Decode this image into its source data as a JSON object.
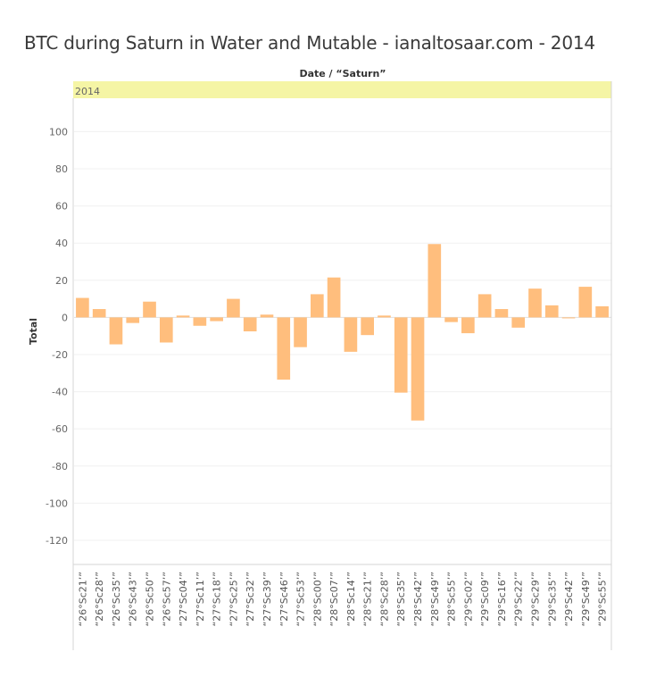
{
  "title": "BTC during Saturn in Water and Mutable - ianaltosaar.com - 2014",
  "chart_data": {
    "type": "bar",
    "column_header": "Date / “Saturn”",
    "panel_label": "2014",
    "ylabel": "Total",
    "ylim": [
      -133,
      118
    ],
    "yticks": [
      100,
      80,
      60,
      40,
      20,
      0,
      -20,
      -40,
      -60,
      -80,
      -100,
      -120
    ],
    "grid": true,
    "bar_color": "#ffbe7d",
    "band_color": "#f5f5a5",
    "categories": [
      "“26°Sc21’”",
      "“26°Sc28’”",
      "“26°Sc35’”",
      "“26°Sc43’”",
      "“26°Sc50’”",
      "“26°Sc57’”",
      "“27°Sc04’”",
      "“27°Sc11’”",
      "“27°Sc18’”",
      "“27°Sc25’”",
      "“27°Sc32’”",
      "“27°Sc39’”",
      "“27°Sc46’”",
      "“27°Sc53’”",
      "“28°Sc00’”",
      "“28°Sc07’”",
      "“28°Sc14’”",
      "“28°Sc21’”",
      "“28°Sc28’”",
      "“28°Sc35’”",
      "“28°Sc42’”",
      "“28°Sc49’”",
      "“28°Sc55’”",
      "“29°Sc02’”",
      "“29°Sc09’”",
      "“29°Sc16’”",
      "“29°Sc22’”",
      "“29°Sc29’”",
      "“29°Sc35’”",
      "“29°Sc42’”",
      "“29°Sc49’”",
      "“29°Sc55’”"
    ],
    "values": [
      10.5,
      4.5,
      -14.5,
      -3,
      8.5,
      -13.5,
      1,
      -4.5,
      -2,
      10,
      -7.5,
      1.5,
      -33.5,
      -16,
      12.5,
      21.5,
      -18.5,
      -9.5,
      1,
      -40.5,
      -55.5,
      39.5,
      -2.5,
      -8.5,
      12.5,
      4.5,
      -5.5,
      15.5,
      6.5,
      -0.5,
      16.5,
      6
    ]
  }
}
